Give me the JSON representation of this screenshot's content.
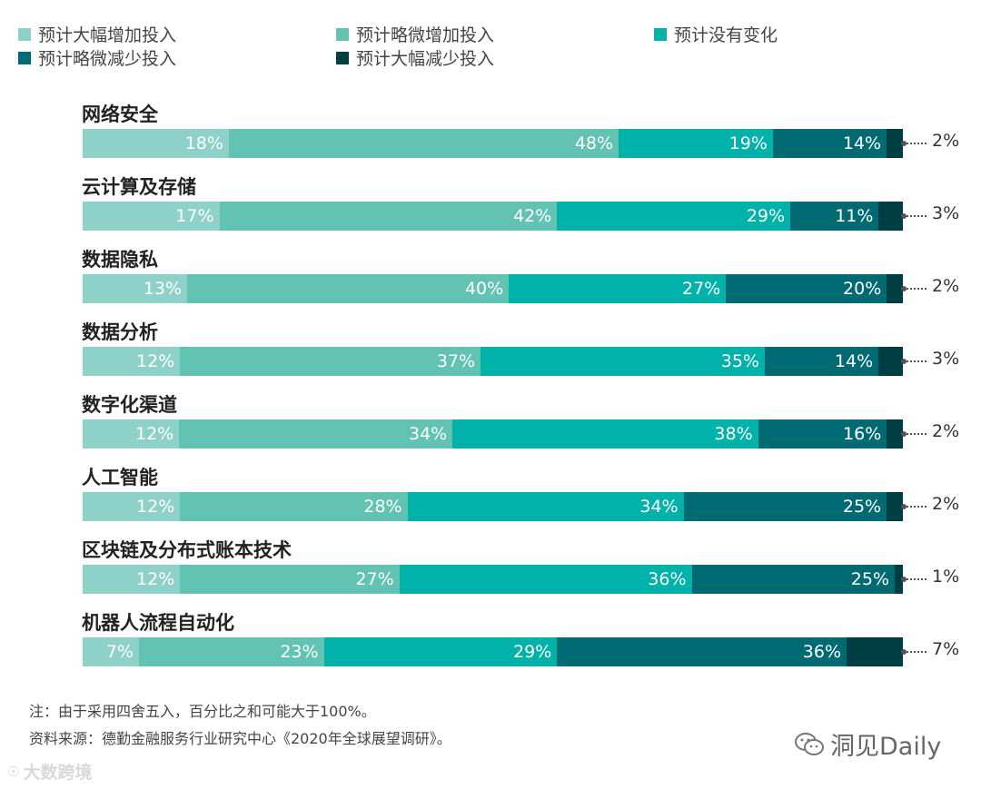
{
  "chart_data": {
    "type": "bar",
    "orientation": "horizontal-stacked-100",
    "series": [
      {
        "name": "预计大幅增加投入",
        "color": "#8ED1C9",
        "values": [
          18,
          17,
          13,
          12,
          12,
          12,
          12,
          7
        ]
      },
      {
        "name": "预计略微增加投入",
        "color": "#62C3B3",
        "values": [
          48,
          42,
          40,
          37,
          34,
          28,
          27,
          23
        ]
      },
      {
        "name": "预计没有变化",
        "color": "#00B2AA",
        "values": [
          19,
          29,
          27,
          35,
          38,
          34,
          36,
          29
        ]
      },
      {
        "name": "预计略微减少投入",
        "color": "#006A72",
        "values": [
          14,
          11,
          20,
          14,
          16,
          25,
          25,
          36
        ]
      },
      {
        "name": "预计大幅减少投入",
        "color": "#003E45",
        "values": [
          2,
          3,
          2,
          3,
          2,
          2,
          1,
          7
        ]
      }
    ],
    "categories": [
      "网络安全",
      "云计算及存储",
      "数据隐私",
      "数据分析",
      "数字化渠道",
      "人工智能",
      "区块链及分布式账本技术",
      "机器人流程自动化"
    ],
    "value_suffix": "%"
  },
  "footnotes": {
    "note": "注：由于采用四舍五入，百分比之和可能大于100%。",
    "source": "资料来源：德勤金融服务行业研究中心《2020年全球展望调研》。"
  },
  "watermarks": {
    "left": "大数跨境",
    "right": "洞见Daily"
  }
}
